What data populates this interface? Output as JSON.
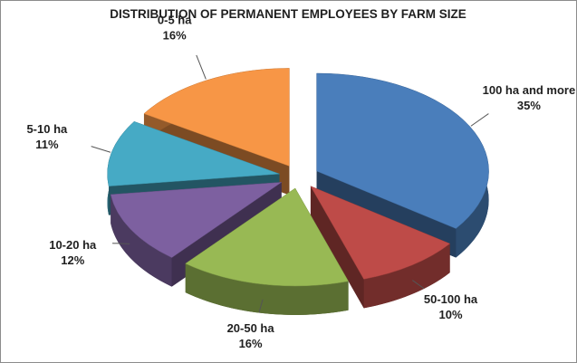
{
  "chart_data": {
    "type": "pie",
    "title": "DISTRIBUTION OF PERMANENT EMPLOYEES BY FARM SIZE",
    "categories": [
      "100 ha and more",
      "50-100 ha",
      "20-50 ha",
      "10-20 ha",
      "5-10 ha",
      "0-5 ha"
    ],
    "values": [
      35,
      10,
      16,
      12,
      11,
      16
    ],
    "value_labels": [
      "35%",
      "10%",
      "16%",
      "12%",
      "11%",
      "16%"
    ],
    "colors": [
      "#4a7ebb",
      "#be4b48",
      "#98b954",
      "#7d60a0",
      "#46aac5",
      "#f79646"
    ]
  }
}
